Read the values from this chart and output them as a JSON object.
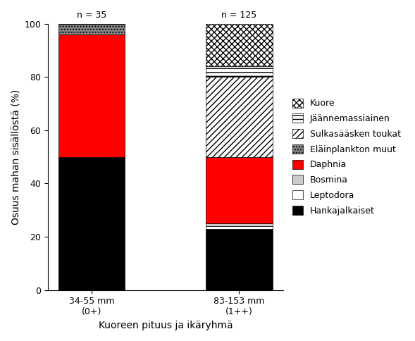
{
  "categories": [
    "34-55 mm\n(0+)",
    "83-153 mm\n(1++)"
  ],
  "n_labels": [
    "n = 35",
    "n = 125"
  ],
  "series": [
    {
      "label": "Hankajalkaiset",
      "values": [
        50,
        23
      ],
      "color": "#000000",
      "hatch": ""
    },
    {
      "label": "Leptodora",
      "values": [
        0,
        1
      ],
      "color": "#ffffff",
      "hatch": ""
    },
    {
      "label": "Bosmina",
      "values": [
        0,
        1
      ],
      "color": "#cccccc",
      "hatch": ""
    },
    {
      "label": "Daphnia",
      "values": [
        46,
        25
      ],
      "color": "#ff0000",
      "hatch": ""
    },
    {
      "label": "Sulkasääsken toukat",
      "values": [
        0,
        30
      ],
      "color": "#ffffff",
      "hatch": "////"
    },
    {
      "label": "Eläinplankton muut",
      "values": [
        4,
        0
      ],
      "color": "#888888",
      "hatch": "...."
    },
    {
      "label": "Jäännemassiainen",
      "values": [
        0,
        4
      ],
      "color": "#ffffff",
      "hatch": "---"
    },
    {
      "label": "Kuore",
      "values": [
        0,
        16
      ],
      "color": "#ffffff",
      "hatch": "xxxx"
    }
  ],
  "legend_order": [
    "Kuore",
    "Jäännemassiainen",
    "Sulkasääsken toukat",
    "Eläinplankton muut",
    "Daphnia",
    "Bosmina",
    "Leptodora",
    "Hankajalkaiset"
  ],
  "ylabel": "Osuus mahan sisällöstä (%)",
  "xlabel": "Kuoreen pituus ja ikäryhmä",
  "ylim": [
    0,
    100
  ],
  "yticks": [
    0,
    20,
    40,
    60,
    80,
    100
  ],
  "bar_width": 0.45,
  "axis_fontsize": 10,
  "legend_fontsize": 9,
  "tick_fontsize": 9,
  "figsize": [
    5.89,
    4.84
  ],
  "dpi": 100
}
